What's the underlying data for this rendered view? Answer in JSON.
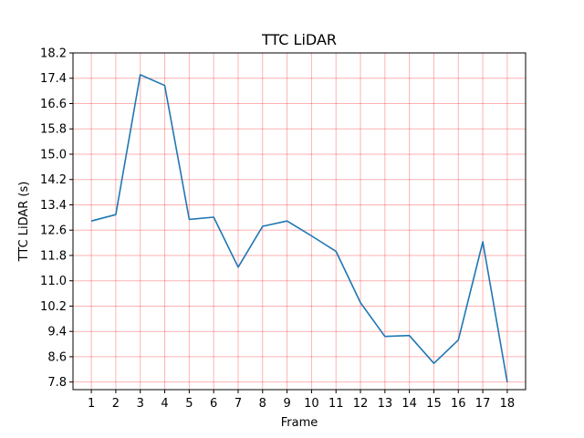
{
  "chart_data": {
    "type": "line",
    "title": "TTC LiDAR",
    "xlabel": "Frame",
    "ylabel": "TTC LiDAR (s)",
    "x": [
      1,
      2,
      3,
      4,
      5,
      6,
      7,
      8,
      9,
      10,
      11,
      12,
      13,
      14,
      15,
      16,
      17,
      18
    ],
    "series": [
      {
        "values": [
          12.89,
          13.09,
          17.51,
          17.17,
          12.94,
          13.01,
          11.43,
          12.72,
          12.89,
          12.42,
          11.93,
          10.31,
          9.24,
          9.27,
          8.39,
          9.13,
          12.23,
          7.8
        ],
        "color": "#1f77b4"
      }
    ],
    "xticks": [
      "1",
      "2",
      "3",
      "4",
      "5",
      "6",
      "7",
      "8",
      "9",
      "10",
      "11",
      "12",
      "13",
      "14",
      "15",
      "16",
      "17",
      "18"
    ],
    "yticks": [
      "7.8",
      "8.6",
      "9.4",
      "10.2",
      "11.0",
      "11.8",
      "12.6",
      "13.4",
      "14.2",
      "15.0",
      "15.8",
      "16.6",
      "17.4",
      "18.2"
    ],
    "xlim": [
      0.25,
      18.75
    ],
    "ylim": [
      7.56,
      18.2
    ],
    "grid": true,
    "grid_color": "#ff0000",
    "legend": "none"
  }
}
